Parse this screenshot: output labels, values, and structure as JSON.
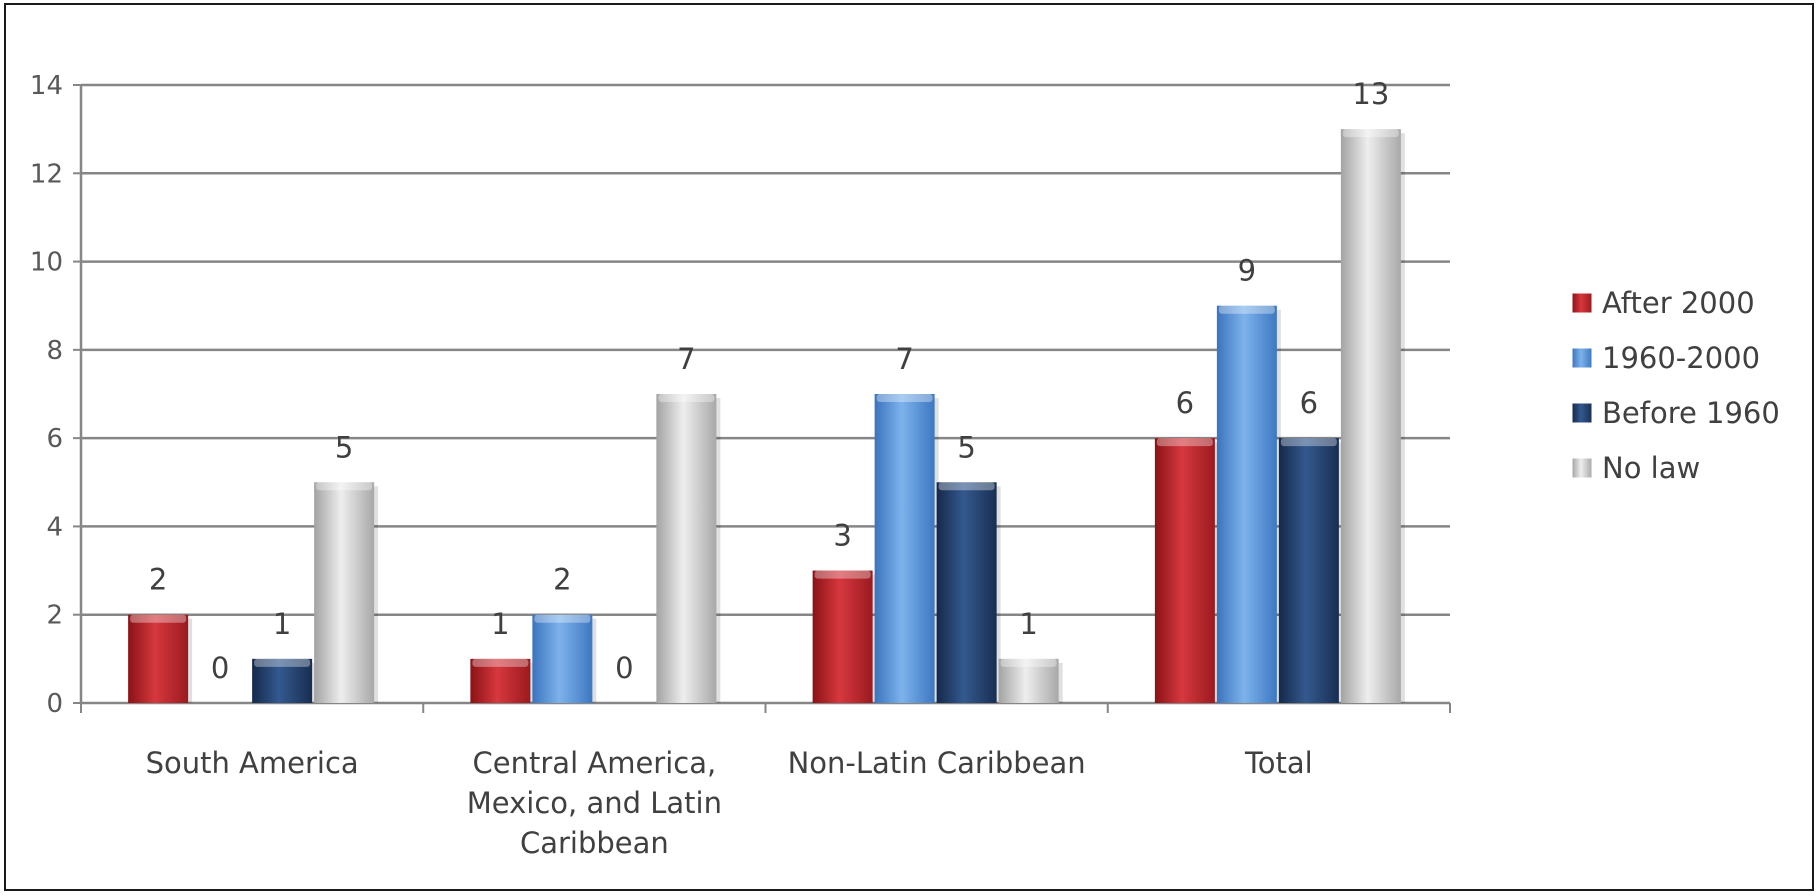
{
  "chart_data": {
    "type": "bar",
    "categories": [
      [
        "South  America"
      ],
      [
        "Central  America,",
        "Mexico,  and  Latin",
        "Caribbean"
      ],
      [
        "Non-Latin Caribbean"
      ],
      [
        "Total"
      ]
    ],
    "series": [
      {
        "name": "After 2000",
        "color": "#c0262d",
        "values": [
          2,
          1,
          3,
          6
        ]
      },
      {
        "name": "1960-2000",
        "color": "#4f8fd6",
        "values": [
          0,
          2,
          7,
          9
        ]
      },
      {
        "name": "Before 1960",
        "color": "#22416f",
        "values": [
          1,
          0,
          5,
          6
        ]
      },
      {
        "name": "No law",
        "color": "#c6c6c6",
        "values": [
          5,
          7,
          1,
          13
        ]
      }
    ],
    "ylim": [
      0,
      14
    ],
    "yticks": [
      0,
      2,
      4,
      6,
      8,
      10,
      12,
      14
    ],
    "grid": true,
    "legend": "right"
  }
}
